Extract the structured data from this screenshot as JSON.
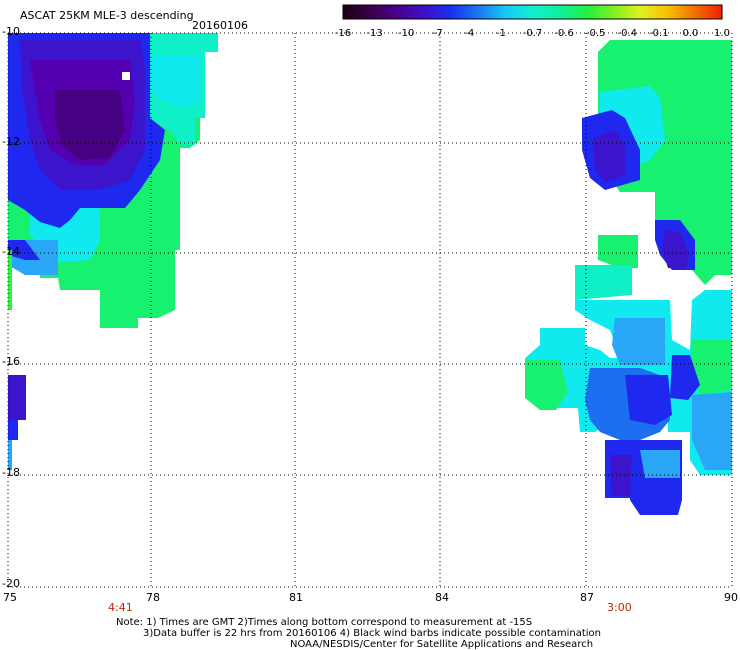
{
  "header": {
    "title": "ASCAT 25KM MLE-3 descending",
    "date": "20160106"
  },
  "color_scale": {
    "labels": [
      "-16",
      "-13",
      "-10",
      "-7",
      "-4",
      "-1",
      "-0.7",
      "-0.6",
      "-0.5",
      "-0.4",
      "-0.1",
      "0.0",
      "1.0"
    ],
    "colors": [
      "#1a0010",
      "#3a0048",
      "#4a0090",
      "#3c10c8",
      "#1a30f0",
      "#1a78f0",
      "#18c8f8",
      "#10f0d0",
      "#10f0a0",
      "#20f040",
      "#80f020",
      "#e0f020",
      "#f8c000",
      "#f07000",
      "#f02000"
    ]
  },
  "map": {
    "lat_labels": [
      "-10",
      "-12",
      "-14",
      "-16",
      "-18",
      "-20"
    ],
    "lon_labels": [
      "75",
      "78",
      "81",
      "84",
      "87",
      "90"
    ],
    "swath_times": [
      "4:41",
      "3:00"
    ]
  },
  "footer": {
    "line1": "Note: 1) Times are GMT 2)Times along bottom correspond to measurement at -15S",
    "line2": "3)Data buffer is 22 hrs from 20160106 4) Black wind barbs indicate possible contamination",
    "line3": "NOAA/NESDIS/Center for Satellite Applications and Research"
  }
}
